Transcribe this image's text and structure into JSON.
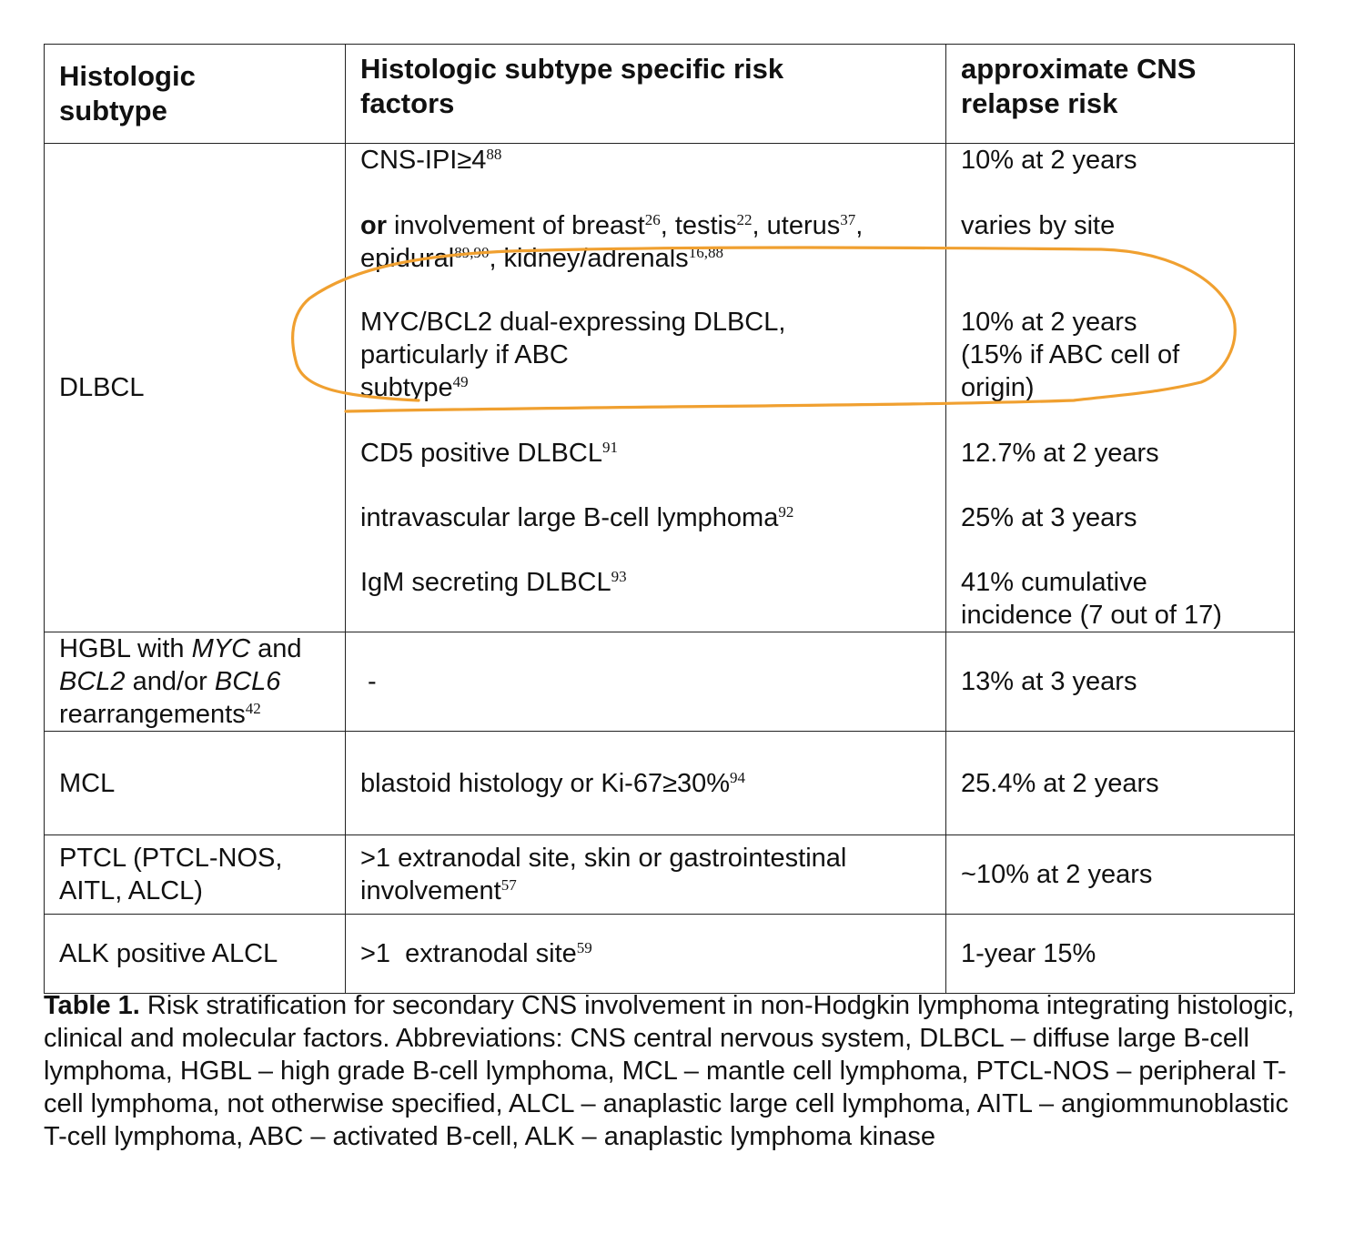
{
  "table": {
    "headers": [
      "Histologic subtype",
      "Histologic subtype specific risk factors",
      "approximate CNS relapse risk"
    ],
    "dlbcl": {
      "subtype": "DLBCL",
      "rows": [
        {
          "factor": "CNS-IPI≥4",
          "ref": "88",
          "risk": "10% at 2 years"
        },
        {
          "factor_bold": "or",
          "factor_a": " involvement of breast",
          "ref_a": "26",
          "factor_b": ", testis",
          "ref_b": "22",
          "factor_c": ", uterus",
          "ref_c": "37",
          "factor_d": ", epidural",
          "ref_d": "89,90",
          "factor_e": ", kidney/adrenals",
          "ref_e": "16,88",
          "risk": "varies by site"
        },
        {
          "factor_l1": "MYC/BCL2 dual-expressing DLBCL,",
          "factor_l2": "particularly if ABC",
          "factor_l3": "subtype",
          "ref": "49",
          "risk_l1": "10% at 2 years",
          "risk_l2": "(15% if ABC cell of",
          "risk_l3": "origin)"
        },
        {
          "factor": "CD5 positive DLBCL",
          "ref": "91",
          "risk": "12.7% at 2 years"
        },
        {
          "factor": "intravascular large B-cell lymphoma",
          "ref": "92",
          "risk": "25% at 3 years"
        },
        {
          "factor": "IgM secreting DLBCL",
          "ref": "93",
          "risk_l1": "41% cumulative",
          "risk_l2": "incidence (7 out of 17)"
        }
      ]
    },
    "hgbl": {
      "subtype_a": "HGBL with ",
      "subtype_myc": "MYC",
      "subtype_b": " and",
      "subtype_bcl2": "BCL2",
      "subtype_c": " and/or ",
      "subtype_bcl6": "BCL6",
      "subtype_d": "rearrangements",
      "ref": "42",
      "factor": "-",
      "risk": "13% at 3 years"
    },
    "mcl": {
      "subtype": "MCL",
      "factor": "blastoid histology or Ki-67≥30%",
      "ref": "94",
      "risk": "25.4% at 2 years"
    },
    "ptcl": {
      "subtype_l1": "PTCL (PTCL-NOS,",
      "subtype_l2": "AITL, ALCL)",
      "factor_l1": ">1 extranodal site, skin or gastrointestinal",
      "factor_l2": "involvement",
      "ref": "57",
      "risk": "~10% at 2 years"
    },
    "alk": {
      "subtype": "ALK positive ALCL",
      "factor": ">1  extranodal site",
      "ref": "59",
      "risk": "1-year 15%"
    }
  },
  "caption": {
    "label": "Table 1.",
    "text": " Risk stratification for secondary CNS involvement in non-Hodgkin lymphoma integrating histologic, clinical and molecular factors. Abbreviations: CNS central nervous system, DLBCL – diffuse large B-cell lymphoma, HGBL – high grade B-cell lymphoma, MCL – mantle cell lymphoma, PTCL-NOS – peripheral T-cell lymphoma, not otherwise specified, ALCL – anaplastic large cell lymphoma, AITL – angiommunoblastic T-cell lymphoma, ABC – activated B-cell,  ALK – anaplastic lymphoma  kinase"
  },
  "annotation": {
    "color": "#f0a030"
  }
}
